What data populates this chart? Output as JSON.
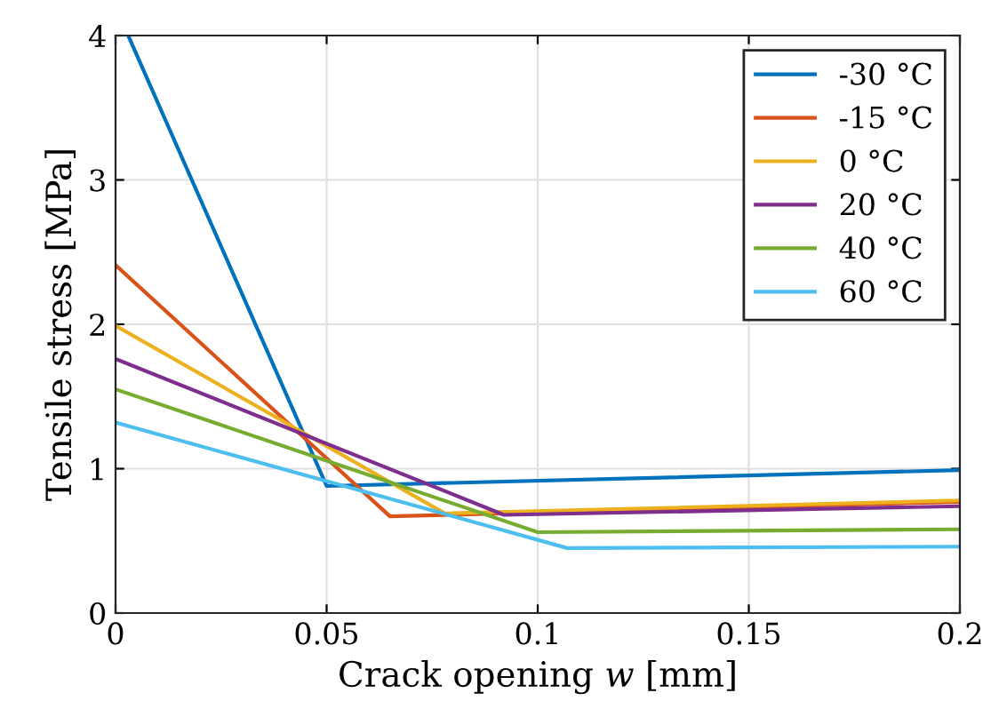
{
  "chart_data": {
    "type": "line",
    "xlabel": "Crack opening 𝑤 [mm]",
    "ylabel": "Tensile stress [MPa]",
    "xlim": [
      0,
      0.2
    ],
    "xticks": [
      0,
      0.05,
      0.1,
      0.15,
      0.2
    ],
    "ylim": [
      0,
      4
    ],
    "yticks": [
      0,
      1,
      2,
      3,
      4
    ],
    "grid": true,
    "legend": "top right",
    "line_style": "solid",
    "marker": "none",
    "series": [
      {
        "name": "-30 °C",
        "color": "#0072bd",
        "x": [
          0.003,
          0.05,
          0.2
        ],
        "values": [
          4.0,
          0.88,
          0.99
        ]
      },
      {
        "name": "-15 °C",
        "color": "#d95319",
        "x": [
          0,
          0.065,
          0.2
        ],
        "values": [
          2.41,
          0.67,
          0.77
        ]
      },
      {
        "name": "0 °C",
        "color": "#edb120",
        "x": [
          0,
          0.078,
          0.2
        ],
        "values": [
          1.99,
          0.69,
          0.78
        ]
      },
      {
        "name": "20 °C",
        "color": "#7e2f8e",
        "x": [
          0,
          0.092,
          0.2
        ],
        "values": [
          1.76,
          0.68,
          0.74
        ]
      },
      {
        "name": "40 °C",
        "color": "#77ac30",
        "x": [
          0,
          0.1,
          0.2
        ],
        "values": [
          1.55,
          0.56,
          0.58
        ]
      },
      {
        "name": "60 °C",
        "color": "#4dbeee",
        "x": [
          0,
          0.107,
          0.2
        ],
        "values": [
          1.32,
          0.45,
          0.46
        ]
      }
    ]
  }
}
